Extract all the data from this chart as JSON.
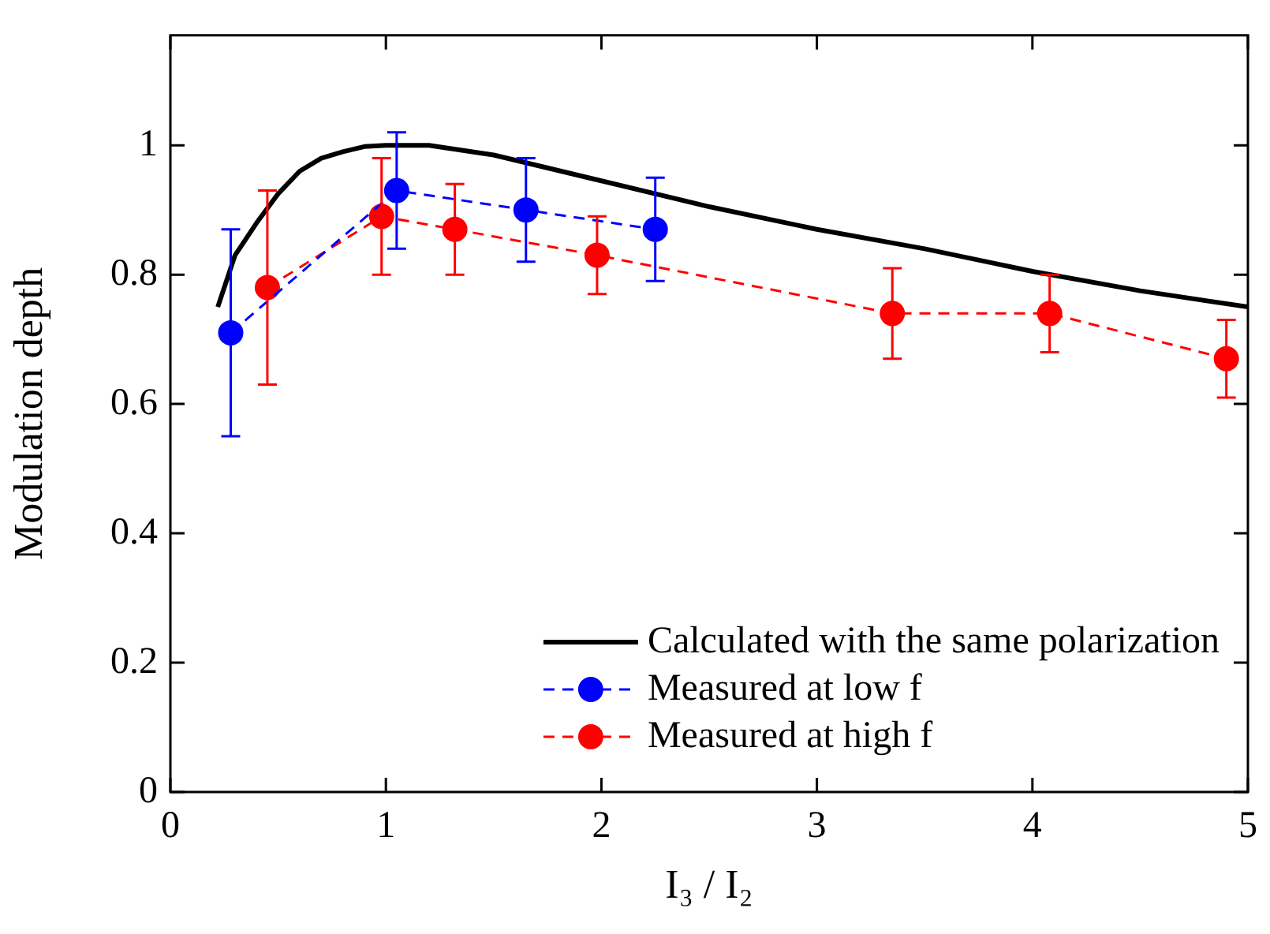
{
  "chart_data": {
    "type": "line",
    "xlabel": "I₃ / I₂",
    "ylabel": "Modulation depth",
    "xlim": [
      0,
      5
    ],
    "xticks": [
      0,
      1,
      2,
      3,
      4,
      5
    ],
    "ylim": [
      0,
      1.17
    ],
    "yticks": [
      0,
      0.2,
      0.4,
      0.6,
      0.8,
      1
    ],
    "grid": false,
    "legend": "bottom right",
    "series": [
      {
        "name": "Calculated with the same polarization",
        "color": "#000000",
        "marker": "none",
        "line_style": "solid",
        "x": [
          0.22,
          0.3,
          0.4,
          0.5,
          0.6,
          0.7,
          0.8,
          0.9,
          1.0,
          1.2,
          1.5,
          2.0,
          2.5,
          3.0,
          3.5,
          4.0,
          4.5,
          5.0
        ],
        "values": [
          0.75,
          0.83,
          0.88,
          0.925,
          0.96,
          0.98,
          0.99,
          0.998,
          1.0,
          1.0,
          0.985,
          0.945,
          0.905,
          0.87,
          0.84,
          0.805,
          0.775,
          0.75
        ]
      },
      {
        "name": "Measured at low f",
        "color": "#0000ff",
        "marker": "circle",
        "line_style": "dashed",
        "x": [
          0.28,
          1.05,
          1.65,
          2.25
        ],
        "values": [
          0.71,
          0.93,
          0.9,
          0.87
        ],
        "errors": [
          [
            0.55,
            0.87
          ],
          [
            0.84,
            1.02
          ],
          [
            0.82,
            0.98
          ],
          [
            0.79,
            0.95
          ]
        ]
      },
      {
        "name": "Measured at high f",
        "color": "#ff0000",
        "marker": "circle",
        "line_style": "dashed",
        "x": [
          0.45,
          0.98,
          1.32,
          1.98,
          3.35,
          4.08,
          4.9
        ],
        "values": [
          0.78,
          0.89,
          0.87,
          0.83,
          0.74,
          0.74,
          0.67
        ],
        "errors": [
          [
            0.63,
            0.93
          ],
          [
            0.8,
            0.98
          ],
          [
            0.8,
            0.94
          ],
          [
            0.77,
            0.89
          ],
          [
            0.67,
            0.81
          ],
          [
            0.68,
            0.8
          ],
          [
            0.61,
            0.73
          ]
        ]
      }
    ]
  }
}
